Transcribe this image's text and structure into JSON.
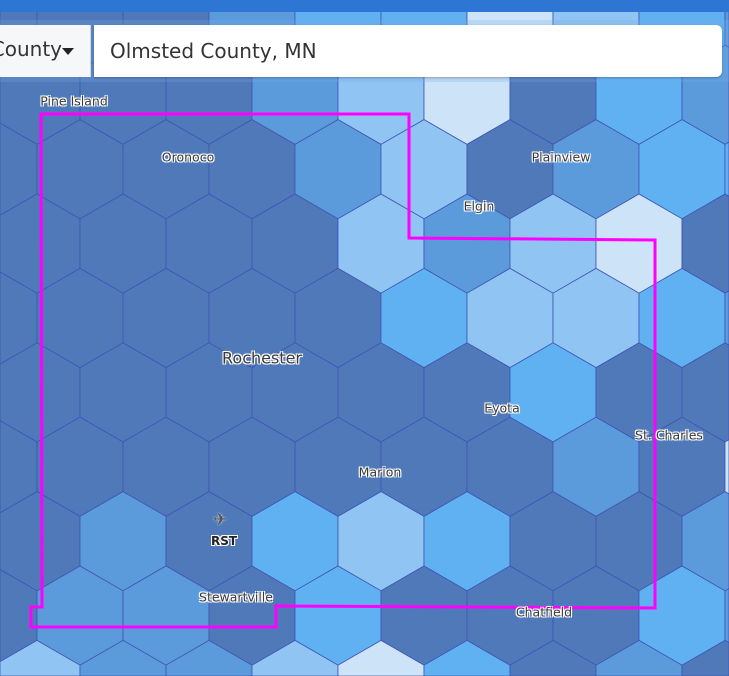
{
  "search": {
    "geography_type_label": "County",
    "query_value": "Olmsted County, MN"
  },
  "map": {
    "level_colors": [
      "#5079b9",
      "#5b9bdb",
      "#5fb1f2",
      "#90c4f3",
      "#cde3f8"
    ],
    "hex_stroke_color": "#3e55b5",
    "boundary_color": "#ff00ff",
    "hex_levels": [
      [
        0,
        0,
        0,
        1,
        2,
        2,
        4,
        3,
        2,
        1
      ],
      [
        0,
        0,
        0,
        0,
        1,
        3,
        4,
        0,
        2,
        1
      ],
      [
        0,
        0,
        0,
        0,
        1,
        3,
        0,
        1,
        2,
        2
      ],
      [
        0,
        0,
        0,
        0,
        0,
        3,
        1,
        3,
        4,
        0
      ],
      [
        0,
        0,
        0,
        0,
        0,
        2,
        3,
        3,
        2,
        1
      ],
      [
        0,
        0,
        0,
        0,
        0,
        0,
        0,
        2,
        0,
        0
      ],
      [
        0,
        0,
        0,
        0,
        0,
        0,
        0,
        1,
        0,
        4
      ],
      [
        0,
        0,
        1,
        0,
        2,
        3,
        2,
        0,
        0,
        1
      ],
      [
        0,
        1,
        1,
        0,
        2,
        0,
        0,
        0,
        2,
        1
      ],
      [
        3,
        3,
        1,
        1,
        3,
        4,
        2,
        0,
        1,
        0
      ]
    ],
    "places": {
      "pine_island": "Pine Island",
      "oronoco": "Oronoco",
      "plainview": "Plainview",
      "elgin": "Elgin",
      "rochester": "Rochester",
      "eyota": "Eyota",
      "st_charles": "St. Charles",
      "marion": "Marion",
      "stewartville": "Stewartville",
      "chatfield": "Chatfield"
    },
    "airport": {
      "icon": "airplane-icon",
      "code": "RST"
    }
  }
}
